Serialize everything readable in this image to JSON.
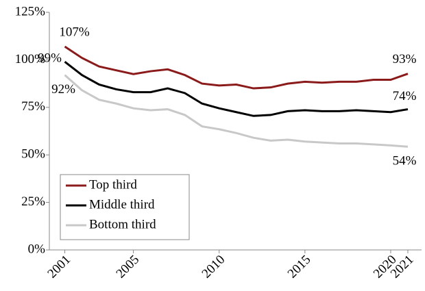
{
  "chart_data": {
    "type": "line",
    "x": [
      2001,
      2002,
      2003,
      2004,
      2005,
      2006,
      2007,
      2008,
      2009,
      2010,
      2011,
      2012,
      2013,
      2014,
      2015,
      2016,
      2017,
      2018,
      2019,
      2020,
      2021
    ],
    "series": [
      {
        "name": "Top third",
        "color": "#8b1a1a",
        "values": [
          107,
          101,
          96.5,
          94.5,
          92.5,
          94,
          95,
          92,
          87.5,
          86.5,
          87,
          85,
          85.5,
          87.5,
          88.5,
          88,
          88.5,
          88.5,
          89.5,
          89.5,
          92.7
        ],
        "value_labels": [
          "107%",
          null,
          null,
          null,
          null,
          null,
          null,
          null,
          null,
          null,
          null,
          null,
          null,
          null,
          null,
          null,
          null,
          null,
          null,
          null,
          "93%"
        ]
      },
      {
        "name": "Middle third",
        "color": "#000000",
        "values": [
          99,
          92,
          87,
          84.5,
          83,
          83,
          85,
          82.5,
          77,
          74.5,
          72.5,
          70.5,
          71,
          73,
          73.5,
          73,
          73,
          73.5,
          73,
          72.5,
          74
        ],
        "value_labels": [
          "99%",
          null,
          null,
          null,
          null,
          null,
          null,
          null,
          null,
          null,
          null,
          null,
          null,
          null,
          null,
          null,
          null,
          null,
          null,
          null,
          "74%"
        ]
      },
      {
        "name": "Bottom third",
        "color": "#c8c8c8",
        "values": [
          92,
          84,
          79,
          77,
          74.5,
          73.5,
          74,
          71,
          65,
          63.5,
          61.5,
          59,
          57.5,
          58,
          57,
          56.5,
          56,
          56,
          55.5,
          55,
          54.3
        ],
        "value_labels": [
          "92%",
          null,
          null,
          null,
          null,
          null,
          null,
          null,
          null,
          null,
          null,
          null,
          null,
          null,
          null,
          null,
          null,
          null,
          null,
          null,
          "54%"
        ]
      }
    ],
    "xlim": [
      2000.1,
      2021.8
    ],
    "xticks": [
      2001,
      2005,
      2010,
      2015,
      2020,
      2021
    ],
    "ylim": [
      0,
      125
    ],
    "yticks": [
      {
        "value": 0,
        "label": "0%"
      },
      {
        "value": 25,
        "label": "25%"
      },
      {
        "value": 50,
        "label": "50%"
      },
      {
        "value": 75,
        "label": "75%"
      },
      {
        "value": 100,
        "label": "100%"
      },
      {
        "value": 125,
        "label": "125%"
      }
    ],
    "legend": "lower left"
  }
}
